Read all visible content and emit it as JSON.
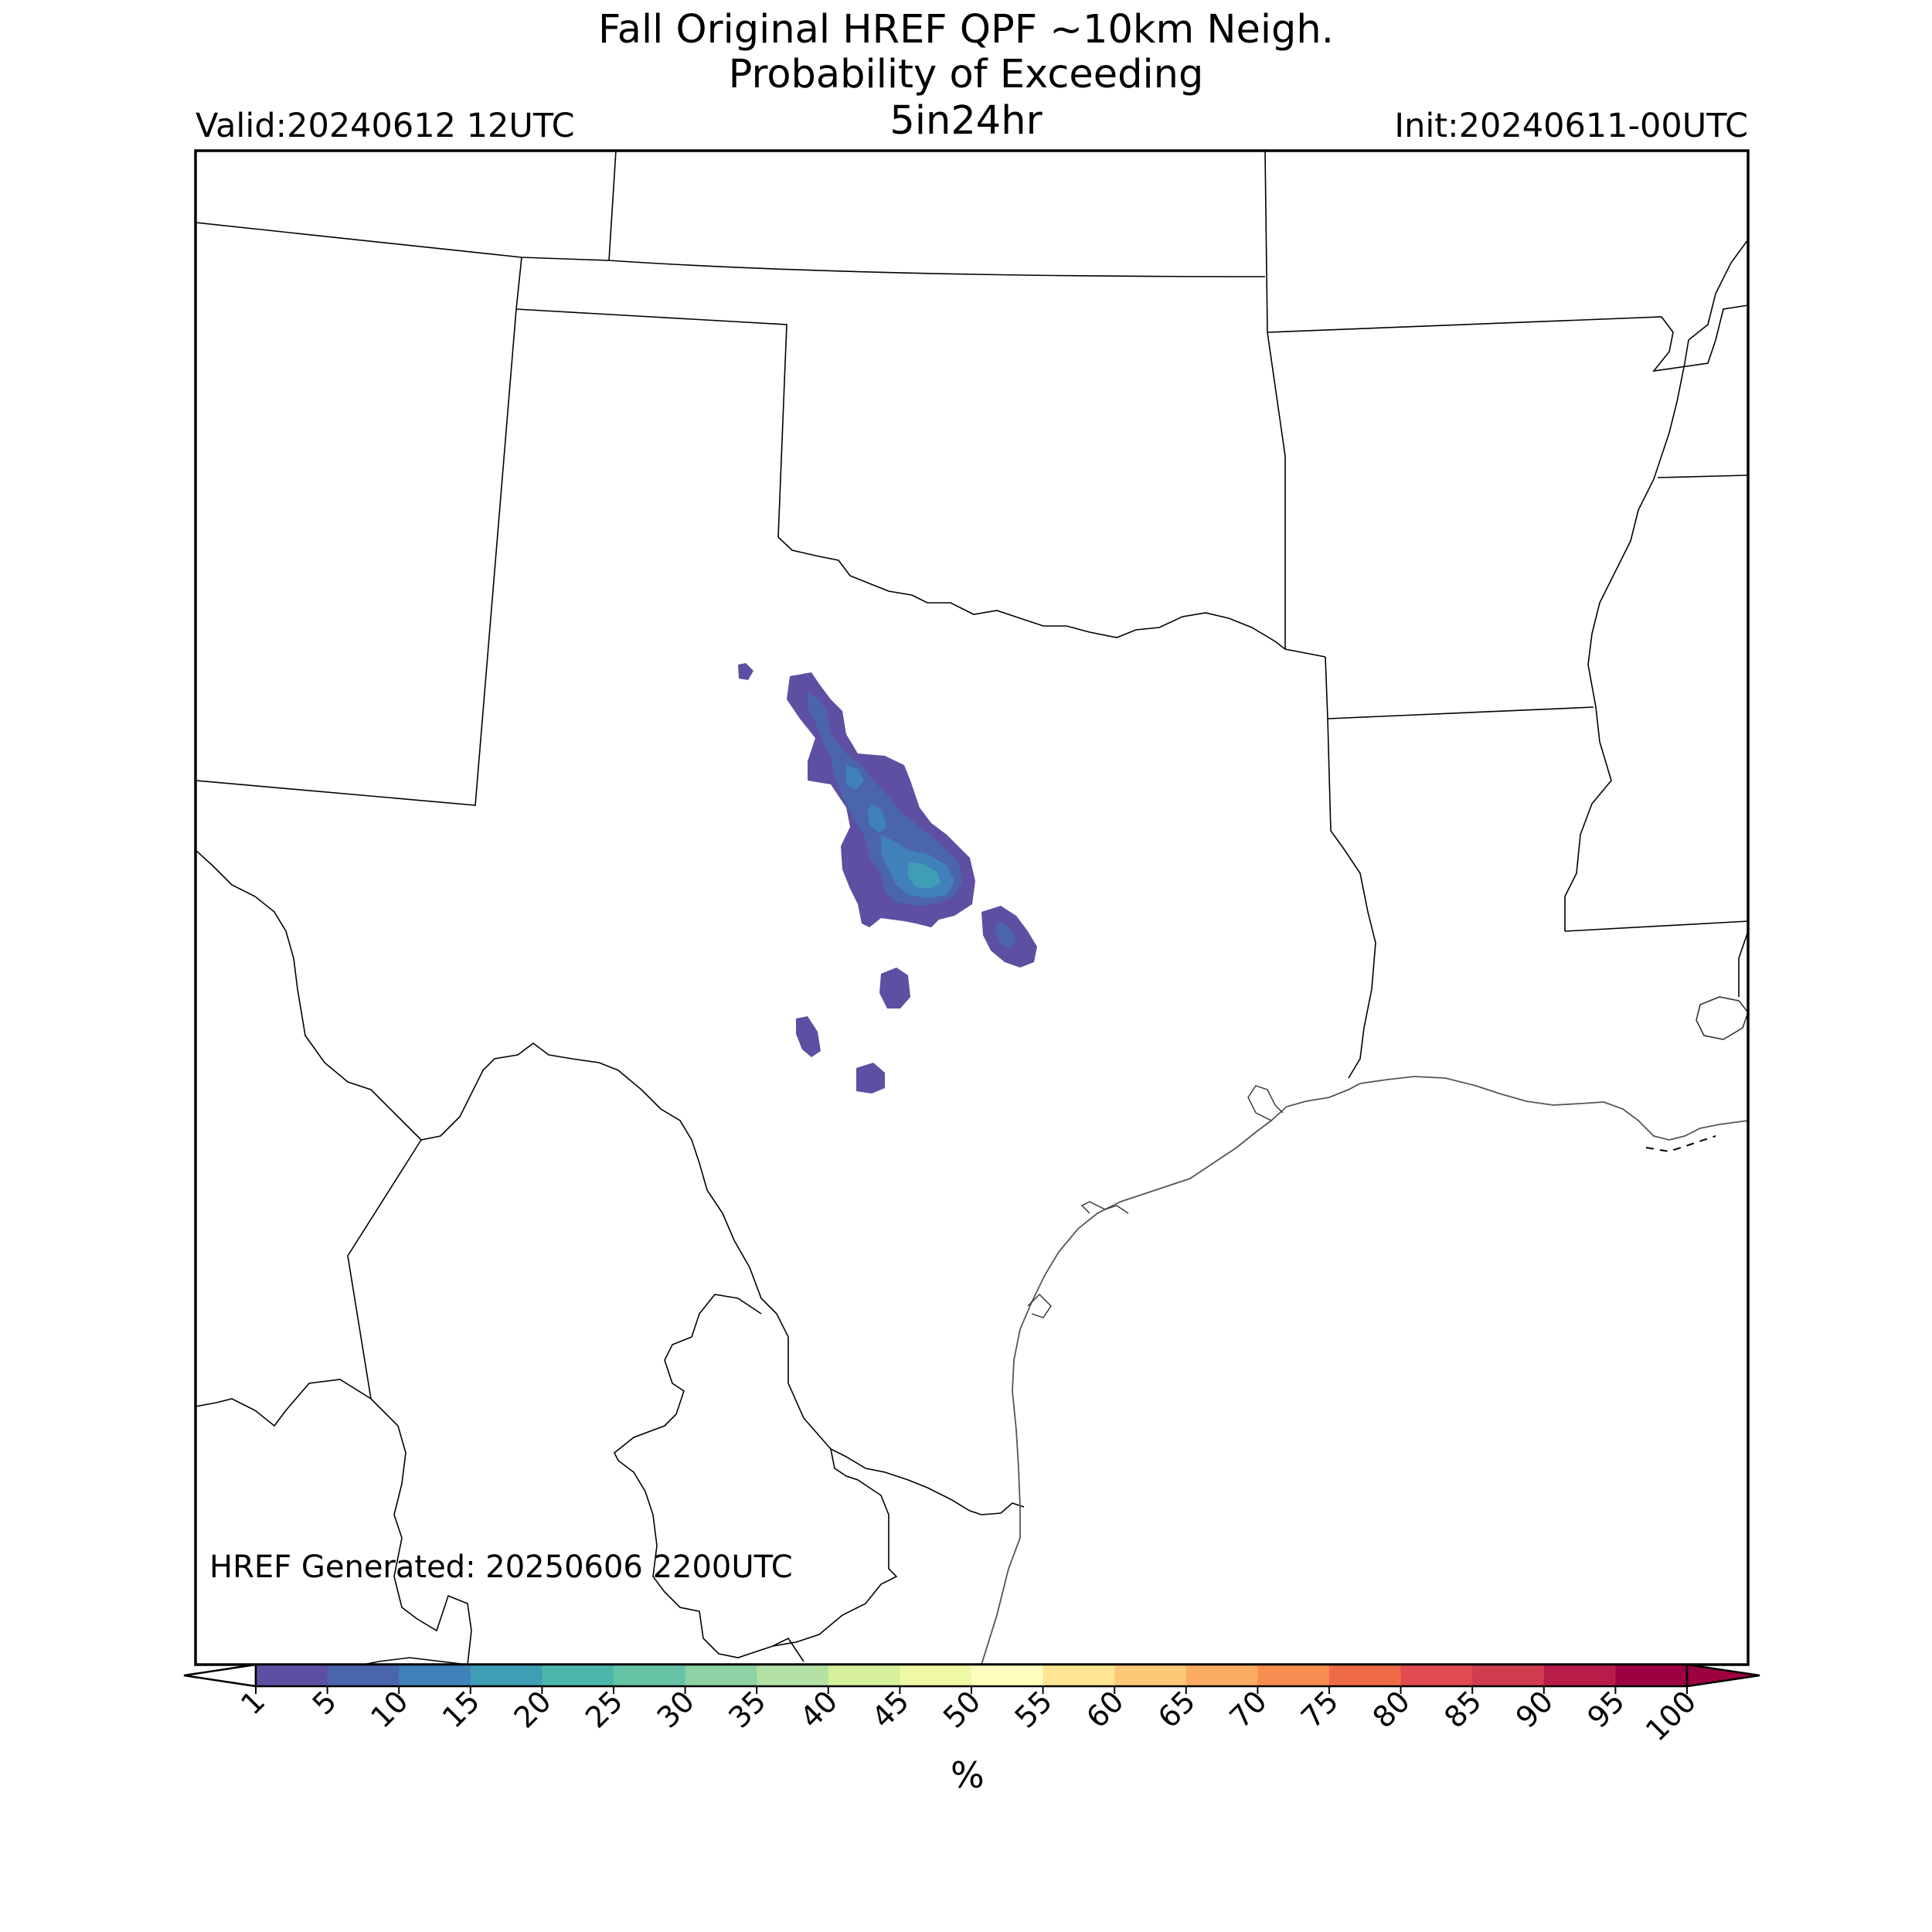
{
  "header": {
    "title_line1": "Fall Original HREF QPF ~10km Neigh.",
    "title_line2": "Probability of Exceeding",
    "title_line3": "5in24hr",
    "valid": "Valid:20240612 12UTC",
    "init": "Init:20240611-00UTC"
  },
  "footer": {
    "generated": "HREF Generated: 20250606 2200UTC"
  },
  "colorbar": {
    "unit": "%",
    "ticks": [
      "1",
      "5",
      "10",
      "15",
      "20",
      "25",
      "30",
      "35",
      "40",
      "45",
      "50",
      "55",
      "60",
      "65",
      "70",
      "75",
      "80",
      "85",
      "90",
      "95",
      "100"
    ],
    "colors": [
      "#5e4fa2",
      "#4a65ac",
      "#3f81b8",
      "#3f9eb5",
      "#4cb6ab",
      "#66c2a5",
      "#8ed1a4",
      "#b3e0a3",
      "#d5ef9b",
      "#eef8a5",
      "#fffebe",
      "#fee593",
      "#fdc877",
      "#fcab62",
      "#f88d52",
      "#ef6b47",
      "#e04b4f",
      "#d03d4e",
      "#b81c49",
      "#9e0142"
    ]
  },
  "map": {
    "region": "Texas and surrounding states",
    "field_colors": {
      "level1": "#5e4fa2",
      "level2": "#4a65ac",
      "level3": "#3f81b8",
      "level4": "#3f9eb5"
    }
  }
}
